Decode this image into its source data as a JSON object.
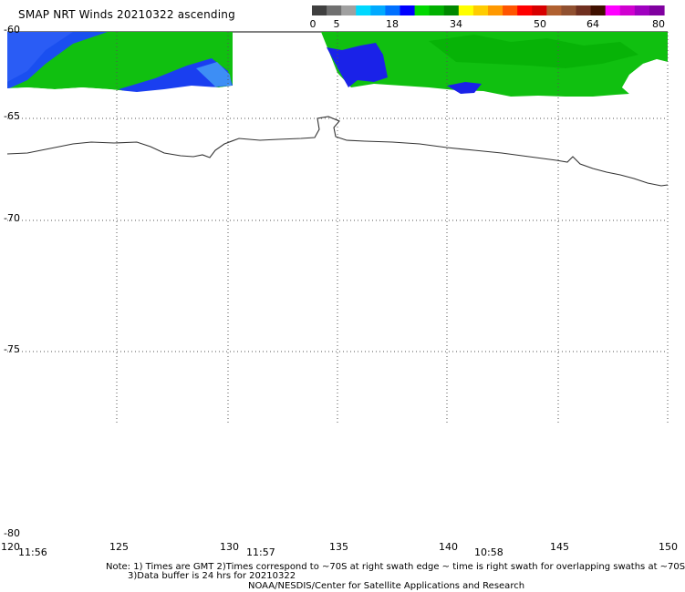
{
  "title": "SMAP NRT Winds 20210322 ascending",
  "colorbar": {
    "ticks": [
      "0",
      "5",
      "18",
      "34",
      "50",
      "64",
      "80"
    ],
    "colors": [
      "#404040",
      "#707070",
      "#a0a0a0",
      "#00d8ff",
      "#00aaff",
      "#0070ff",
      "#0000ff",
      "#00d800",
      "#00b000",
      "#008800",
      "#ffff00",
      "#ffcc00",
      "#ff9900",
      "#ff5500",
      "#ff0000",
      "#d80000",
      "#b06030",
      "#905030",
      "#703020",
      "#401000",
      "#ff00ff",
      "#d000d0",
      "#a000c0",
      "#8000a0"
    ]
  },
  "map": {
    "lat_labels": [
      "-60",
      "-65",
      "-70",
      "-75",
      "-80"
    ],
    "lon_labels": [
      "120",
      "125",
      "130",
      "135",
      "140",
      "145",
      "150"
    ],
    "time_labels": [
      "11:56",
      "11:57",
      "10:58"
    ]
  },
  "notes": {
    "line1": "Note: 1) Times are GMT 2)Times correspond to ~70S at right swath edge ~ time is right swath for overlapping swaths at ~70S",
    "line2": "3)Data buffer is 24 hrs for 20210322",
    "line3": "NOAA/NESDIS/Center for Satellite Applications and Research"
  }
}
